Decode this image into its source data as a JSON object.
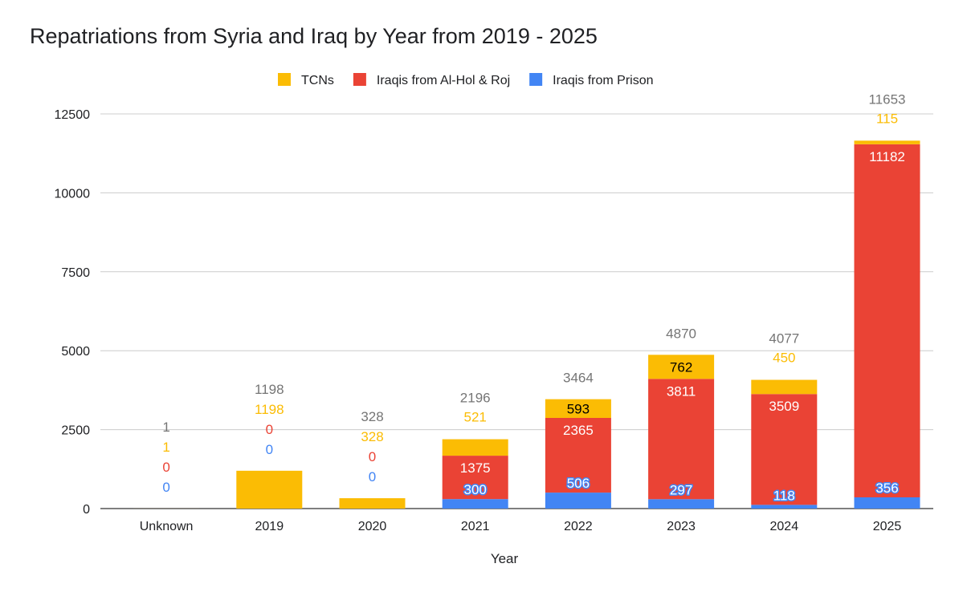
{
  "chart_data": {
    "type": "bar",
    "stacked": true,
    "title": "Repatriations from Syria and Iraq by Year from 2019 - 2025",
    "xlabel": "Year",
    "ylabel": "",
    "ylim": [
      0,
      12500
    ],
    "yticks": [
      0,
      2500,
      5000,
      7500,
      10000,
      12500
    ],
    "grid": true,
    "legend_position": "top",
    "categories": [
      "Unknown",
      "2019",
      "2020",
      "2021",
      "2022",
      "2023",
      "2024",
      "2025"
    ],
    "series": [
      {
        "name": "Iraqis from Prison",
        "color": "#4285F4",
        "values": [
          0,
          0,
          0,
          300,
          506,
          297,
          118,
          356
        ]
      },
      {
        "name": "Iraqis from Al-Hol & Roj",
        "color": "#EA4335",
        "values": [
          0,
          0,
          0,
          1375,
          2365,
          3811,
          3509,
          11182
        ]
      },
      {
        "name": "TCNs",
        "color": "#FBBC04",
        "values": [
          1,
          1198,
          328,
          521,
          593,
          762,
          450,
          115
        ]
      }
    ],
    "legend_order": [
      "TCNs",
      "Iraqis from Al-Hol & Roj",
      "Iraqis from Prison"
    ],
    "totals": [
      1,
      1198,
      328,
      2196,
      3464,
      4870,
      4077,
      11653
    ],
    "total_label_color": "#757575"
  }
}
